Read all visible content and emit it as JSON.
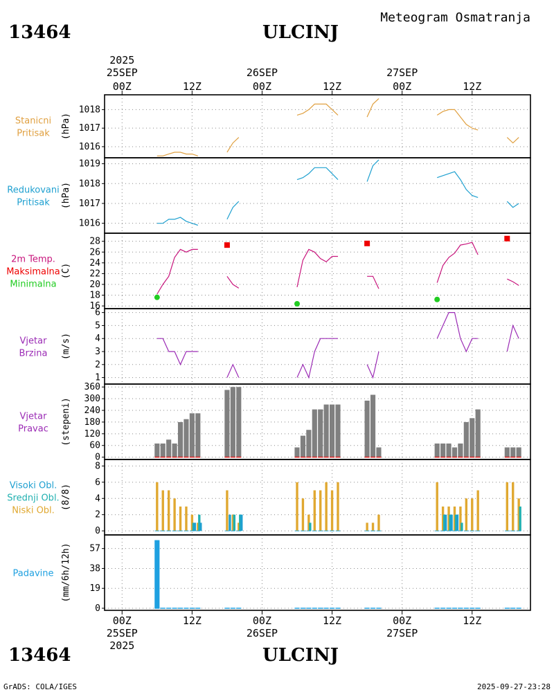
{
  "header": {
    "station_id": "13464",
    "station_name": "ULCINJ",
    "subtitle": "Meteogram Osmatranja"
  },
  "footer": {
    "left": "GrADS: COLA/IGES",
    "right": "2025-09-27-23:28"
  },
  "time_axis": {
    "year": "2025",
    "ticks": [
      {
        "hour": 0,
        "label": "00Z",
        "date": "25SEP",
        "year": "2025"
      },
      {
        "hour": 12,
        "label": "12Z"
      },
      {
        "hour": 24,
        "label": "00Z",
        "date": "26SEP"
      },
      {
        "hour": 36,
        "label": "12Z"
      },
      {
        "hour": 48,
        "label": "00Z",
        "date": "27SEP"
      },
      {
        "hour": 60,
        "label": "12Z"
      }
    ],
    "range_hours": [
      -3,
      70
    ]
  },
  "colors": {
    "pressure": "#e0a040",
    "reduced_pressure": "#1ea0d0",
    "temperature": "#c8147c",
    "max_temp": "#ee0000",
    "min_temp": "#22cc22",
    "wind": "#9b2bb5",
    "wind_dir_bar": "#808080",
    "low_cloud": "#e0a830",
    "mid_cloud": "#20b0b0",
    "high_cloud": "#1ea0d0",
    "precip": "#1ea0e0",
    "grid": "#888888"
  },
  "chart_data": [
    {
      "type": "line",
      "name": "pressure",
      "labels": [
        "Stanicni",
        "Pritisak"
      ],
      "ylabel": "(hPa)",
      "ylim": [
        1015.4,
        1018.8
      ],
      "yticks": [
        1016,
        1017,
        1018
      ],
      "segments": [
        {
          "x": [
            6,
            7,
            8,
            9,
            10,
            11,
            12,
            13
          ],
          "y": [
            1015.5,
            1015.5,
            1015.6,
            1015.7,
            1015.7,
            1015.6,
            1015.6,
            1015.5
          ]
        },
        {
          "x": [
            18,
            19,
            20
          ],
          "y": [
            1015.7,
            1016.2,
            1016.5
          ]
        },
        {
          "x": [
            30,
            31,
            32,
            33,
            34,
            35,
            36,
            37
          ],
          "y": [
            1017.7,
            1017.8,
            1018.0,
            1018.3,
            1018.3,
            1018.3,
            1018.0,
            1017.7
          ]
        },
        {
          "x": [
            42,
            43,
            44
          ],
          "y": [
            1017.6,
            1018.3,
            1018.6
          ]
        },
        {
          "x": [
            54,
            55,
            56,
            57,
            58,
            59,
            60,
            61
          ],
          "y": [
            1017.7,
            1017.9,
            1018.0,
            1018.0,
            1017.6,
            1017.2,
            1017.0,
            1016.9
          ]
        },
        {
          "x": [
            66,
            67,
            68
          ],
          "y": [
            1016.5,
            1016.2,
            1016.5
          ]
        }
      ]
    },
    {
      "type": "line",
      "name": "reduced_pressure",
      "labels": [
        "Redukovani",
        "Pritisak"
      ],
      "ylabel": "(hPa)",
      "ylim": [
        1015.5,
        1019.3
      ],
      "yticks": [
        1016,
        1017,
        1018,
        1019
      ],
      "segments": [
        {
          "x": [
            6,
            7,
            8,
            9,
            10,
            11,
            12,
            13
          ],
          "y": [
            1016.0,
            1016.0,
            1016.2,
            1016.2,
            1016.3,
            1016.1,
            1016.0,
            1015.9
          ]
        },
        {
          "x": [
            18,
            19,
            20
          ],
          "y": [
            1016.2,
            1016.8,
            1017.1
          ]
        },
        {
          "x": [
            30,
            31,
            32,
            33,
            34,
            35,
            36,
            37
          ],
          "y": [
            1018.2,
            1018.3,
            1018.5,
            1018.8,
            1018.8,
            1018.8,
            1018.5,
            1018.2
          ]
        },
        {
          "x": [
            42,
            43,
            44
          ],
          "y": [
            1018.1,
            1018.9,
            1019.2
          ]
        },
        {
          "x": [
            54,
            55,
            56,
            57,
            58,
            59,
            60,
            61
          ],
          "y": [
            1018.3,
            1018.4,
            1018.5,
            1018.6,
            1018.2,
            1017.7,
            1017.4,
            1017.3
          ]
        },
        {
          "x": [
            66,
            67,
            68
          ],
          "y": [
            1017.1,
            1016.8,
            1017.0
          ]
        }
      ]
    },
    {
      "type": "line",
      "name": "temperature",
      "labels": [
        "2m Temp.",
        "Maksimalna",
        "Minimalna"
      ],
      "ylabel": "(C)",
      "ylim": [
        15.5,
        29.5
      ],
      "yticks": [
        16,
        18,
        20,
        22,
        24,
        26,
        28
      ],
      "segments": [
        {
          "x": [
            6,
            7,
            8,
            9,
            10,
            11,
            12,
            13
          ],
          "y": [
            18.2,
            20.0,
            21.5,
            25.0,
            26.5,
            26.0,
            26.5,
            26.5
          ]
        },
        {
          "x": [
            18,
            19,
            20
          ],
          "y": [
            21.5,
            20.0,
            19.3
          ]
        },
        {
          "x": [
            30,
            31,
            32,
            33,
            34,
            35,
            36,
            37
          ],
          "y": [
            19.5,
            24.5,
            26.5,
            26.0,
            24.8,
            24.2,
            25.2,
            25.2
          ]
        },
        {
          "x": [
            42,
            43,
            44
          ],
          "y": [
            21.5,
            21.5,
            19.2
          ]
        },
        {
          "x": [
            54,
            55,
            56,
            57,
            58,
            59,
            60,
            61
          ],
          "y": [
            20.3,
            23.5,
            25.0,
            25.8,
            27.3,
            27.5,
            27.8,
            25.5
          ]
        },
        {
          "x": [
            66,
            67,
            68
          ],
          "y": [
            21.0,
            20.5,
            19.8
          ]
        }
      ],
      "max_points": [
        {
          "x": 18,
          "y": 27.3
        },
        {
          "x": 42,
          "y": 27.6
        },
        {
          "x": 66,
          "y": 28.5
        }
      ],
      "min_points": [
        {
          "x": 6,
          "y": 17.6
        },
        {
          "x": 30,
          "y": 16.4
        },
        {
          "x": 54,
          "y": 17.2
        }
      ]
    },
    {
      "type": "line",
      "name": "wind_speed",
      "labels": [
        "Vjetar",
        "Brzina"
      ],
      "ylabel": "(m/s)",
      "ylim": [
        0.5,
        6.3
      ],
      "yticks": [
        1,
        2,
        3,
        4,
        5,
        6
      ],
      "segments": [
        {
          "x": [
            6,
            7,
            8,
            9,
            10,
            11,
            12,
            13
          ],
          "y": [
            4,
            4,
            3,
            3,
            2,
            3,
            3,
            3
          ]
        },
        {
          "x": [
            18,
            19,
            20
          ],
          "y": [
            1,
            2,
            1
          ]
        },
        {
          "x": [
            30,
            31,
            32,
            33,
            34,
            35,
            36,
            37
          ],
          "y": [
            1,
            2,
            1,
            3,
            4,
            4,
            4,
            4
          ]
        },
        {
          "x": [
            42,
            43,
            44
          ],
          "y": [
            2,
            1,
            3
          ]
        },
        {
          "x": [
            54,
            55,
            56,
            57,
            58,
            59,
            60,
            61
          ],
          "y": [
            4,
            5,
            6,
            6,
            4,
            3,
            4,
            4
          ]
        },
        {
          "x": [
            66,
            67,
            68
          ],
          "y": [
            3,
            5,
            4
          ]
        }
      ]
    },
    {
      "type": "bar",
      "name": "wind_direction",
      "labels": [
        "Vjetar",
        "Pravac"
      ],
      "ylabel": "(stepeni)",
      "ylim": [
        -12,
        375
      ],
      "yticks": [
        0,
        60,
        120,
        180,
        240,
        300,
        360
      ],
      "x": [
        6,
        7,
        8,
        9,
        10,
        11,
        12,
        13,
        18,
        19,
        20,
        30,
        31,
        32,
        33,
        34,
        35,
        36,
        37,
        42,
        43,
        44,
        54,
        55,
        56,
        57,
        58,
        59,
        60,
        61,
        66,
        67,
        68
      ],
      "values": [
        70,
        70,
        90,
        70,
        180,
        195,
        225,
        225,
        345,
        360,
        360,
        50,
        110,
        140,
        245,
        245,
        270,
        270,
        270,
        290,
        320,
        50,
        70,
        70,
        70,
        50,
        70,
        180,
        200,
        245,
        50,
        50,
        50
      ]
    },
    {
      "type": "bar",
      "name": "cloud_cover",
      "labels": [
        "Visoki Obl.",
        "Srednji Obl.",
        "Niski Obl."
      ],
      "ylabel": "(8/8)",
      "ylim": [
        -0.5,
        8.8
      ],
      "yticks": [
        0,
        2,
        4,
        6,
        8
      ],
      "x": [
        6,
        7,
        8,
        9,
        10,
        11,
        12,
        13,
        18,
        19,
        20,
        30,
        31,
        32,
        33,
        34,
        35,
        36,
        37,
        42,
        43,
        44,
        54,
        55,
        56,
        57,
        58,
        59,
        60,
        61,
        66,
        67,
        68
      ],
      "series": [
        {
          "name": "Niski Obl.",
          "values": [
            6,
            5,
            5,
            4,
            3,
            3,
            2,
            1,
            5,
            2,
            1,
            6,
            4,
            2,
            5,
            5,
            6,
            5,
            6,
            1,
            1,
            2,
            6,
            3,
            3,
            3,
            3,
            4,
            4,
            5,
            6,
            6,
            4
          ]
        },
        {
          "name": "Srednji Obl.",
          "values": [
            0,
            0,
            0,
            0,
            0,
            0,
            1,
            2,
            0,
            2,
            2,
            0,
            0,
            1,
            0,
            0,
            0,
            0,
            0,
            0,
            0,
            0,
            0,
            2,
            2,
            2,
            1,
            0,
            0,
            0,
            0,
            0,
            3
          ]
        },
        {
          "name": "Visoki Obl.",
          "values": [
            0,
            0,
            0,
            0,
            0,
            0,
            1,
            1,
            2,
            0,
            2,
            0,
            0,
            0,
            0,
            0,
            0,
            0,
            0,
            0,
            0,
            0,
            0,
            2,
            2,
            2,
            0,
            0,
            0,
            0,
            0,
            0,
            0
          ]
        }
      ]
    },
    {
      "type": "bar",
      "name": "precipitation",
      "labels": [
        "Padavine"
      ],
      "ylabel": "(mm/6h/12h)",
      "ylim": [
        -2,
        70
      ],
      "yticks": [
        0,
        19,
        38,
        57
      ],
      "x": [
        6,
        7,
        8,
        9,
        10,
        11,
        12,
        13,
        18,
        19,
        20,
        30,
        31,
        32,
        33,
        34,
        35,
        36,
        37,
        42,
        43,
        44,
        54,
        55,
        56,
        57,
        58,
        59,
        60,
        61,
        66,
        67,
        68
      ],
      "values": [
        65,
        0,
        0,
        0,
        0,
        0,
        0,
        0,
        0,
        0,
        0,
        0,
        0,
        0,
        0,
        0,
        0,
        0,
        0,
        0,
        0,
        0,
        0,
        0,
        0,
        0,
        0,
        0,
        0,
        0,
        0,
        0,
        0
      ]
    }
  ]
}
